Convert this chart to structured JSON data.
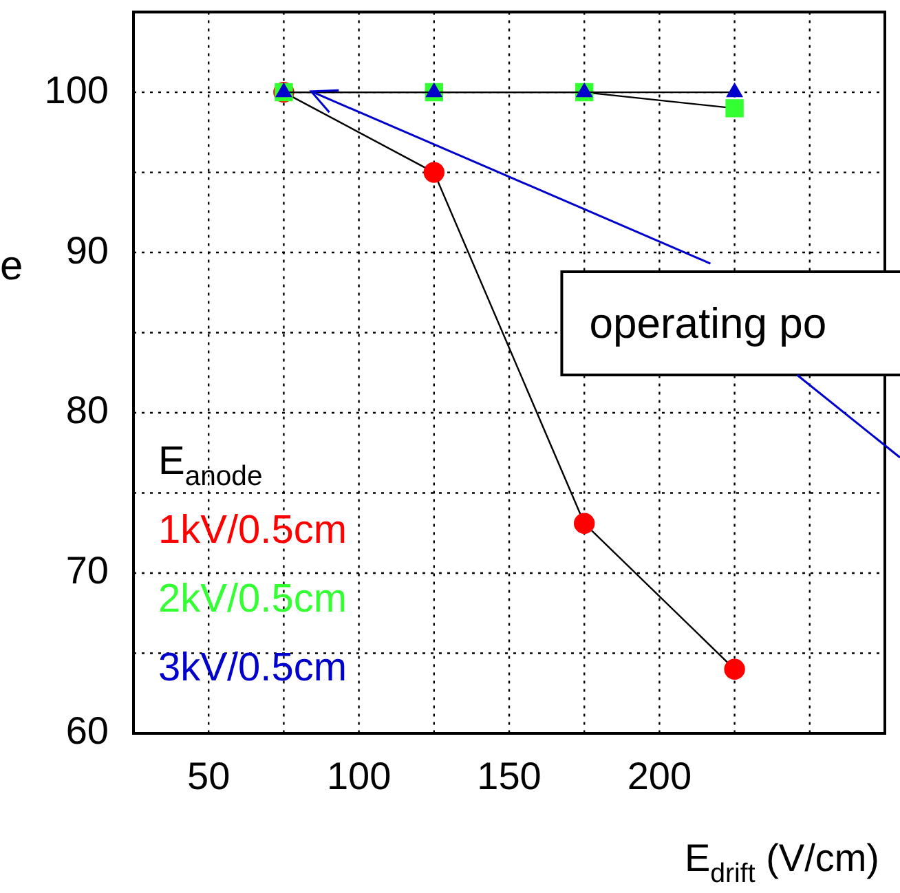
{
  "chart_data": {
    "type": "line",
    "ylabel": "e",
    "xlabel": "E$_{drift}$ (V/cm)",
    "legend_title": "E$_{anode}$",
    "legend": "bottom left",
    "grid": true,
    "line_style": "solid",
    "x": [
      75,
      125,
      175,
      225
    ],
    "xlim": [
      25,
      275
    ],
    "xticks": [
      50,
      {
        "value": 75,
        "label": null
      },
      100,
      {
        "value": 125,
        "label": null
      },
      150,
      {
        "value": 175,
        "label": null
      },
      200,
      {
        "value": 225,
        "label": null
      },
      {
        "value": 250,
        "label": null
      }
    ],
    "ylim": [
      60,
      105
    ],
    "yticks": [
      60,
      {
        "value": 65,
        "label": null
      },
      70,
      {
        "value": 75,
        "label": null
      },
      80,
      {
        "value": 85,
        "label": null
      },
      90,
      {
        "value": 95,
        "label": null
      },
      100
    ],
    "series": [
      {
        "name": "1kV/0.5cm",
        "color": "#ff0000",
        "marker": "circle",
        "values": [
          100,
          95,
          73.1,
          64.0
        ]
      },
      {
        "name": "2kV/0.5cm",
        "color": "#33ff33",
        "marker": "square",
        "values": [
          100,
          100,
          100,
          99.0
        ]
      },
      {
        "name": "3kV/0.5cm",
        "color": "#0000cc",
        "marker": "triangle",
        "values": [
          100,
          100,
          100,
          100
        ]
      }
    ],
    "annotations": [
      "operating po"
    ]
  }
}
